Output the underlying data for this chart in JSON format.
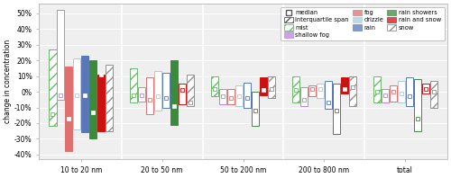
{
  "groups": [
    "10 to 20 nm",
    "20 to 50 nm",
    "50 to 200 nm",
    "200 to 800 nm",
    "total"
  ],
  "series": [
    {
      "name": "mist",
      "color": "#6db86d",
      "hatch": "///",
      "boxes": [
        {
          "q1": -22,
          "median": -14,
          "q3": 27,
          "filled": false
        },
        {
          "q1": -7,
          "median": -2,
          "q3": 15,
          "filled": false
        },
        {
          "q1": -3,
          "median": 2,
          "q3": 10,
          "filled": false
        },
        {
          "q1": -7,
          "median": 1,
          "q3": 10,
          "filled": false
        },
        {
          "q1": -7,
          "median": 0,
          "q3": 10,
          "filled": false
        }
      ]
    },
    {
      "name": "shallow fog",
      "color": "#c080e0",
      "hatch": "",
      "boxes": [
        {
          "q1": -5,
          "median": -2,
          "q3": 52,
          "filled": false
        },
        {
          "q1": -6,
          "median": -2,
          "q3": 3,
          "filled": false
        },
        {
          "q1": -8,
          "median": -3,
          "q3": 2,
          "filled": false
        },
        {
          "q1": -9,
          "median": -5,
          "q3": 3,
          "filled": false
        },
        {
          "q1": -7,
          "median": -2,
          "q3": 2,
          "filled": false
        }
      ]
    },
    {
      "name": "fog",
      "color": "#e07070",
      "hatch": "",
      "boxes": [
        {
          "q1": -38,
          "median": -17,
          "q3": 16,
          "filled": true
        },
        {
          "q1": -14,
          "median": -5,
          "q3": 9,
          "filled": false
        },
        {
          "q1": -8,
          "median": -4,
          "q3": 2,
          "filled": false
        },
        {
          "q1": -3,
          "median": 2,
          "q3": 4,
          "filled": false
        },
        {
          "q1": -6,
          "median": 0,
          "q3": 4,
          "filled": false
        }
      ]
    },
    {
      "name": "drizzle",
      "color": "#a8cce0",
      "hatch": "",
      "boxes": [
        {
          "q1": -24,
          "median": -2,
          "q3": 21,
          "filled": false
        },
        {
          "q1": -12,
          "median": -3,
          "q3": 13,
          "filled": false
        },
        {
          "q1": -9,
          "median": -3,
          "q3": 4,
          "filled": false
        },
        {
          "q1": -4,
          "median": 2,
          "q3": 5,
          "filled": false
        },
        {
          "q1": -7,
          "median": -1,
          "q3": 7,
          "filled": false
        }
      ]
    },
    {
      "name": "rain",
      "color": "#5878b8",
      "hatch": "",
      "boxes": [
        {
          "q1": -26,
          "median": -2,
          "q3": 23,
          "filled": true
        },
        {
          "q1": -10,
          "median": -4,
          "q3": 12,
          "filled": false
        },
        {
          "q1": -10,
          "median": -4,
          "q3": 6,
          "filled": false
        },
        {
          "q1": -11,
          "median": -7,
          "q3": 7,
          "filled": false
        },
        {
          "q1": -9,
          "median": -3,
          "q3": 9,
          "filled": false
        }
      ]
    },
    {
      "name": "rain showers",
      "color": "#3a8c3a",
      "hatch": "",
      "boxes": [
        {
          "q1": -30,
          "median": -13,
          "q3": 20,
          "filled": true
        },
        {
          "q1": -21,
          "median": -9,
          "q3": 20,
          "filled": true
        },
        {
          "q1": -22,
          "median": -12,
          "q3": 0,
          "filled": false
        },
        {
          "q1": -27,
          "median": -12,
          "q3": 5,
          "filled": false
        },
        {
          "q1": -25,
          "median": -17,
          "q3": 8,
          "filled": false
        }
      ]
    },
    {
      "name": "rain and snow",
      "color": "#cc1111",
      "hatch": "",
      "boxes": [
        {
          "q1": -25,
          "median": 11,
          "q3": 11,
          "filled": true
        },
        {
          "q1": -8,
          "median": 1,
          "q3": 5,
          "filled": false
        },
        {
          "q1": -2,
          "median": 1,
          "q3": 9,
          "filled": true
        },
        {
          "q1": -1,
          "median": 2,
          "q3": 9,
          "filled": true
        },
        {
          "q1": -1,
          "median": 2,
          "q3": 5,
          "filled": false
        }
      ]
    },
    {
      "name": "snow",
      "color": "#909090",
      "hatch": "///",
      "boxes": [
        {
          "q1": -25,
          "median": -8,
          "q3": 17,
          "filled": true
        },
        {
          "q1": -9,
          "median": -7,
          "q3": 11,
          "filled": false
        },
        {
          "q1": -4,
          "median": 2,
          "q3": 10,
          "filled": false
        },
        {
          "q1": -9,
          "median": 3,
          "q3": 10,
          "filled": false
        },
        {
          "q1": -10,
          "median": 0,
          "q3": 7,
          "filled": false
        }
      ]
    }
  ],
  "ylim": [
    -43,
    56
  ],
  "yticks": [
    -40,
    -30,
    -20,
    -10,
    0,
    10,
    20,
    30,
    40,
    50
  ],
  "yticklabels": [
    "-40%",
    "-30%",
    "-20%",
    "-10%",
    "0%",
    "10%",
    "20%",
    "30%",
    "40%",
    "50%"
  ],
  "ylabel": "change in concentration",
  "bg_color": "#efefef",
  "box_width": 0.09,
  "group_width": 1.0
}
